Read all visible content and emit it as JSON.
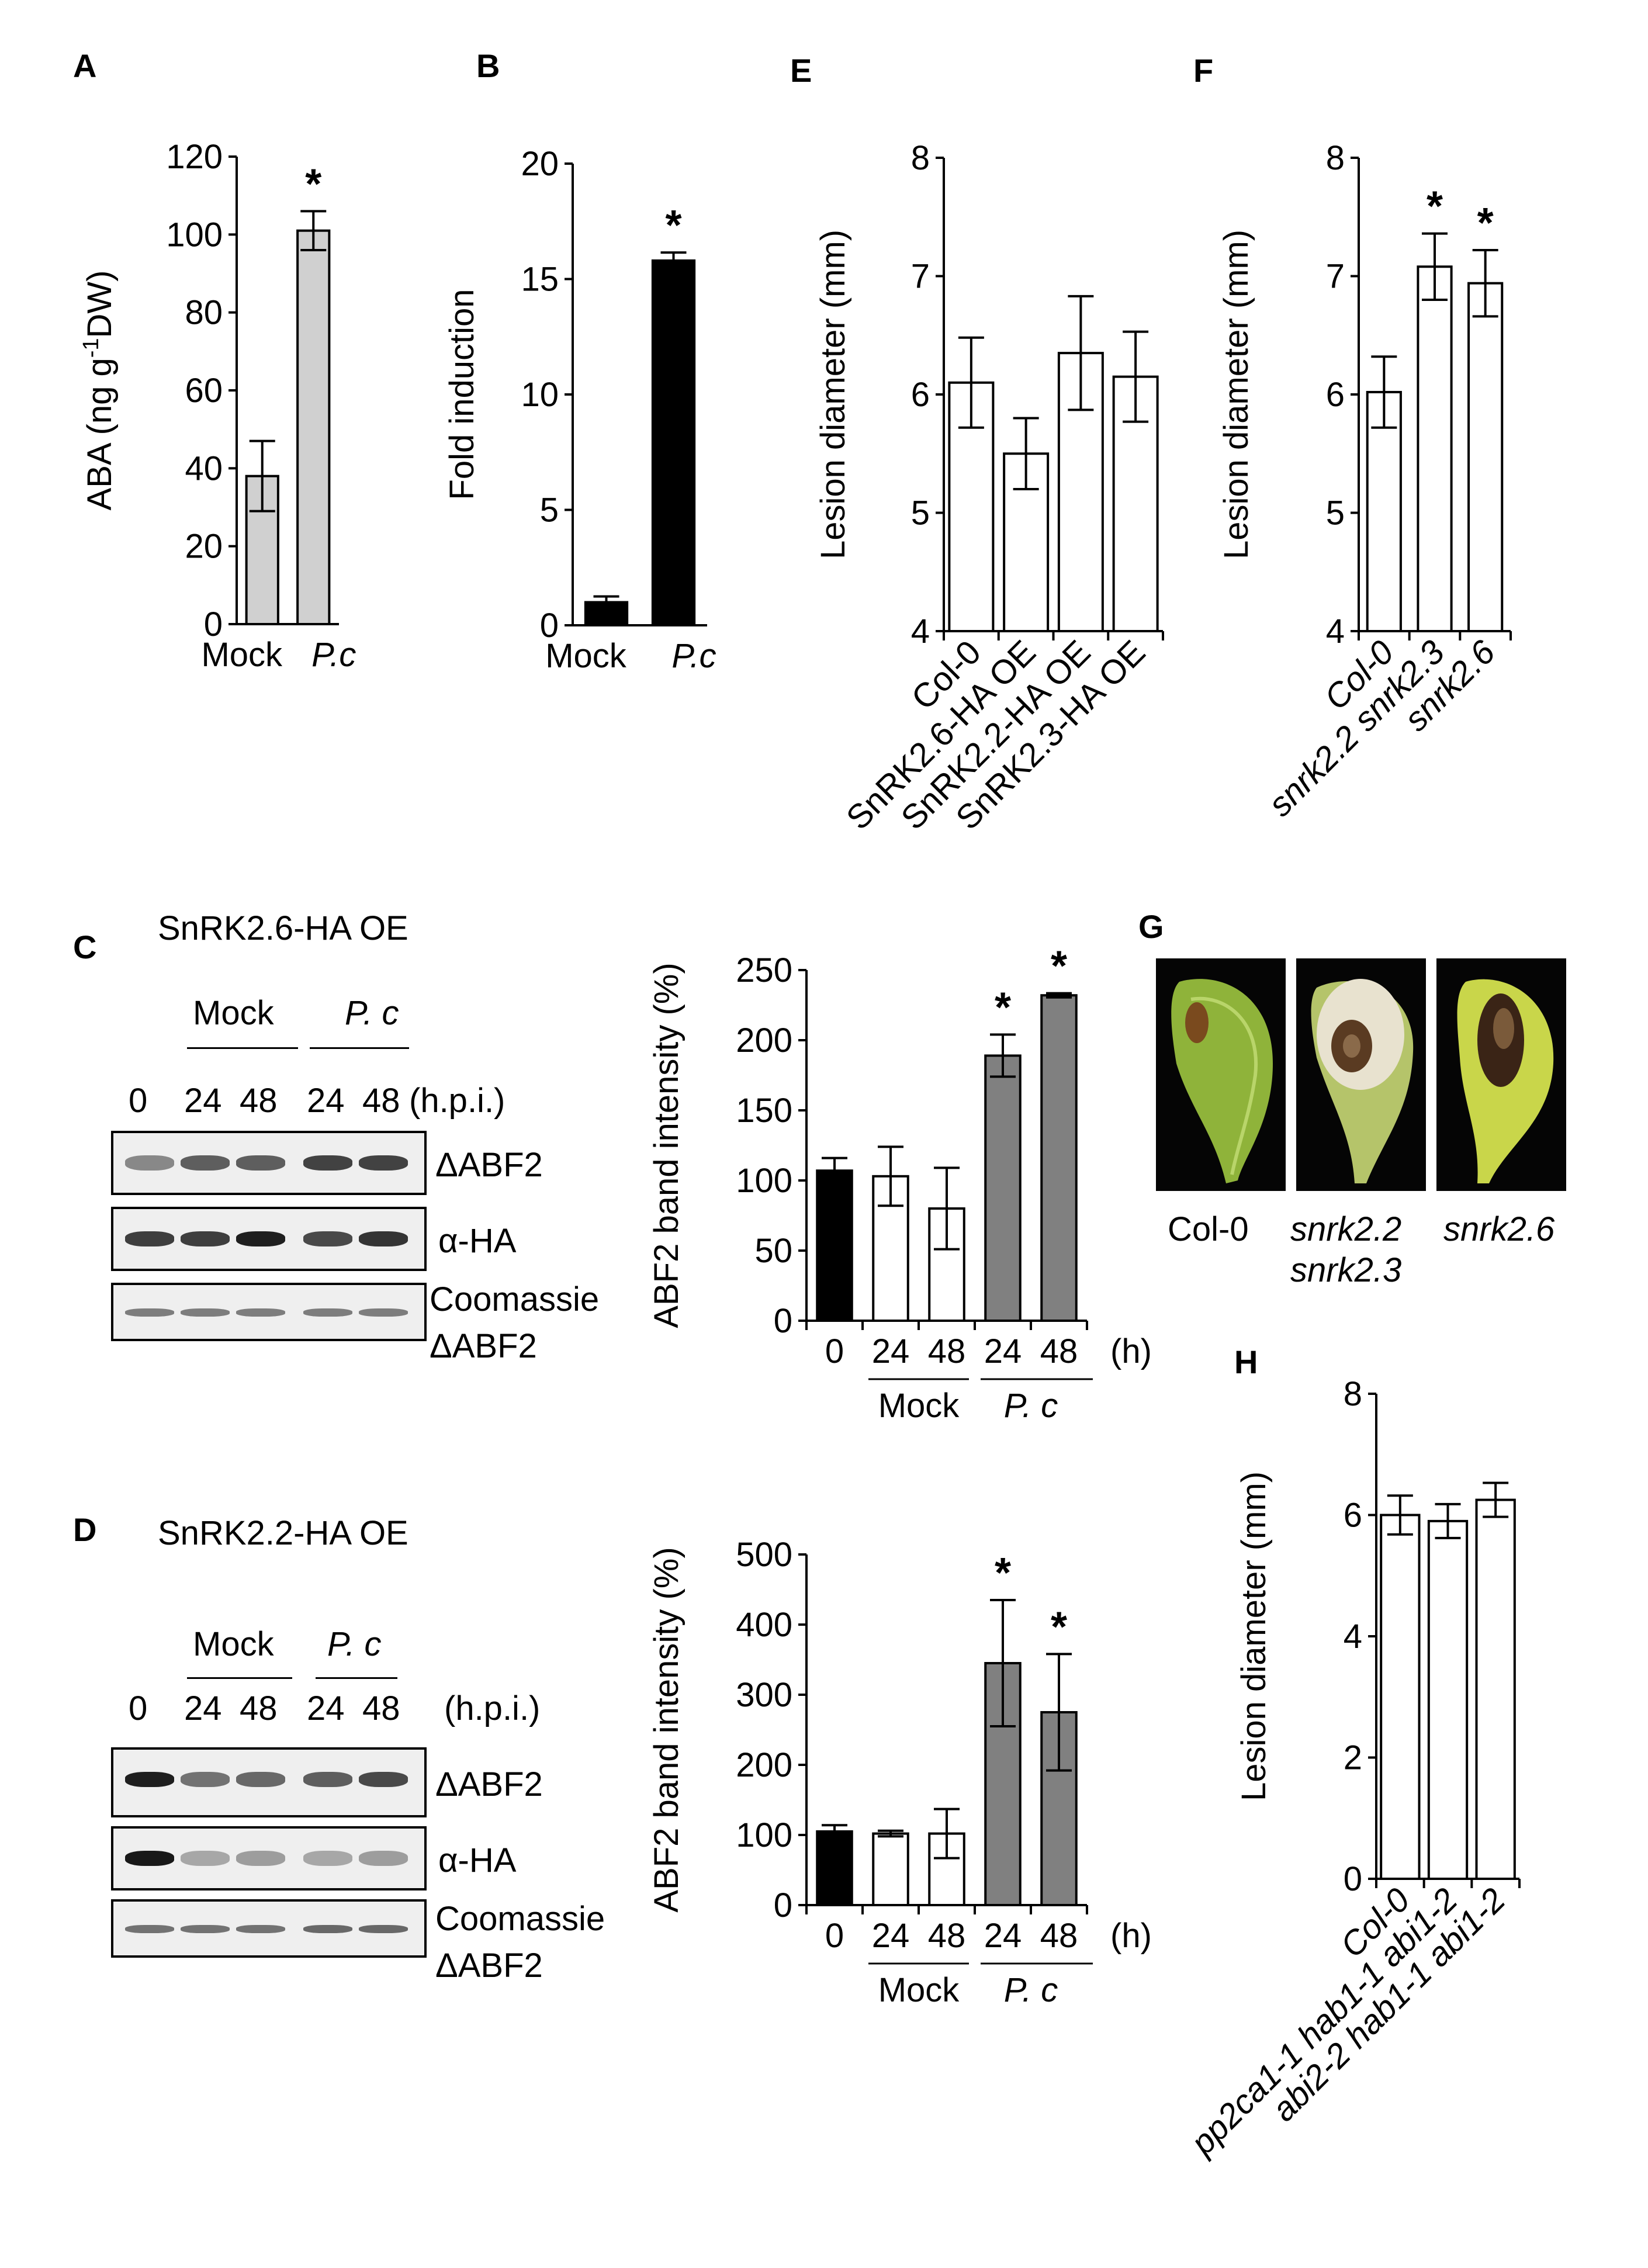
{
  "panels": {
    "A": "A",
    "B": "B",
    "C": "C",
    "D": "D",
    "E": "E",
    "F": "F",
    "G": "G",
    "H": "H"
  },
  "colors": {
    "light_gray_bar": "#d0d0d0",
    "dark_gray_bar": "#808080",
    "black_bar": "#000000",
    "white_bar": "#ffffff"
  },
  "chart_data": [
    {
      "id": "A",
      "type": "bar",
      "categories": [
        "Mock",
        "P.c"
      ],
      "values": [
        38,
        101
      ],
      "errors": [
        9,
        5
      ],
      "significant": [
        "",
        "*"
      ],
      "ylabel": "ABA (ng g-1DW)",
      "ylabel_main": "ABA (ng g",
      "ylabel_sup": "-1",
      "ylabel_tail": "DW)",
      "ylim": [
        0,
        120
      ],
      "yticks": [
        "0",
        "20",
        "40",
        "60",
        "80",
        "100",
        "120"
      ],
      "bar_color": "#d0d0d0"
    },
    {
      "id": "B",
      "type": "bar",
      "categories": [
        "Mock",
        "P.c"
      ],
      "values": [
        1.0,
        15.8
      ],
      "errors": [
        0.25,
        0.35
      ],
      "significant": [
        "",
        "*"
      ],
      "ylabel": "Fold induction",
      "ylim": [
        0,
        20
      ],
      "yticks": [
        "0",
        "5",
        "10",
        "15",
        "20"
      ],
      "bar_color": "#000000"
    },
    {
      "id": "E",
      "type": "bar",
      "categories": [
        "Col-0",
        "SnRK2.6-HA OE",
        "SnRK2.2-HA OE",
        "SnRK2.3-HA OE"
      ],
      "values": [
        6.1,
        5.5,
        6.35,
        6.15
      ],
      "errors": [
        0.38,
        0.3,
        0.48,
        0.38
      ],
      "ylabel": "Lesion diameter (mm)",
      "ylim": [
        4,
        8
      ],
      "yticks": [
        "4",
        "5",
        "6",
        "7",
        "8"
      ],
      "bar_color": "#ffffff"
    },
    {
      "id": "F",
      "type": "bar",
      "categories": [
        "Col-0",
        "snrk2.2 snrk2.3",
        "snrk2.6"
      ],
      "values": [
        6.02,
        7.08,
        6.94
      ],
      "errors": [
        0.3,
        0.28,
        0.28
      ],
      "significant": [
        "",
        "*",
        "*"
      ],
      "ylabel": "Lesion diameter (mm)",
      "ylim": [
        4,
        8
      ],
      "yticks": [
        "4",
        "5",
        "6",
        "7",
        "8"
      ],
      "bar_color": "#ffffff"
    },
    {
      "id": "C",
      "type": "bar",
      "categories": [
        "0",
        "24",
        "48",
        "24",
        "48"
      ],
      "values": [
        107,
        103,
        80,
        189,
        232
      ],
      "errors": [
        9,
        21,
        29,
        15,
        1.5
      ],
      "significant": [
        "",
        "",
        "",
        "*",
        "*"
      ],
      "bar_colors": [
        "#000000",
        "#ffffff",
        "#ffffff",
        "#808080",
        "#808080"
      ],
      "ylabel": "ABF2 band intensity (%)",
      "ylim": [
        0,
        250
      ],
      "yticks": [
        "0",
        "50",
        "100",
        "150",
        "200",
        "250"
      ],
      "x_unit": "(h)",
      "groups": [
        "Mock",
        "P. c"
      ]
    },
    {
      "id": "D",
      "type": "bar",
      "categories": [
        "0",
        "24",
        "48",
        "24",
        "48"
      ],
      "values": [
        105,
        102,
        102,
        345,
        275
      ],
      "errors": [
        9,
        4,
        35,
        90,
        83
      ],
      "significant": [
        "",
        "",
        "",
        "*",
        "*"
      ],
      "bar_colors": [
        "#000000",
        "#ffffff",
        "#ffffff",
        "#808080",
        "#808080"
      ],
      "ylabel": "ABF2 band intensity (%)",
      "ylim": [
        0,
        500
      ],
      "yticks": [
        "0",
        "100",
        "200",
        "300",
        "400",
        "500"
      ],
      "x_unit": "(h)",
      "groups": [
        "Mock",
        "P. c"
      ]
    },
    {
      "id": "H",
      "type": "bar",
      "categories": [
        "Col-0",
        "pp2ca1-1 hab1-1 abi1-2",
        "abi2-2 hab1-1 abi1-2"
      ],
      "values": [
        6.0,
        5.9,
        6.25
      ],
      "errors": [
        0.32,
        0.28,
        0.28
      ],
      "ylabel": "Lesion diameter (mm)",
      "ylim": [
        0,
        8
      ],
      "yticks": [
        "0",
        "2",
        "4",
        "6",
        "8"
      ],
      "bar_color": "#ffffff"
    }
  ],
  "blot_c": {
    "title": "SnRK2.6-HA OE",
    "group_mock": "Mock",
    "group_pc": "P. c",
    "lanes": [
      "0",
      "24",
      "48",
      "24",
      "48"
    ],
    "lane_unit": "(h.p.i.)",
    "rows": [
      "ΔABF2",
      "α-HA",
      "Coomassie"
    ],
    "row_extra": "ΔABF2",
    "intensities": {
      "abf2": [
        0.45,
        0.65,
        0.65,
        0.78,
        0.78
      ],
      "ha": [
        0.8,
        0.8,
        0.95,
        0.75,
        0.85
      ],
      "coomassie": [
        0.5,
        0.5,
        0.5,
        0.5,
        0.5
      ]
    }
  },
  "blot_d": {
    "title": "SnRK2.2-HA OE",
    "group_mock": "Mock",
    "group_pc": "P. c",
    "lanes": [
      "0",
      "24",
      "48",
      "24",
      "48"
    ],
    "lane_unit": "(h.p.i.)",
    "rows": [
      "ΔABF2",
      "α-HA",
      "Coomassie"
    ],
    "row_extra": "ΔABF2",
    "intensities": {
      "abf2": [
        0.95,
        0.55,
        0.6,
        0.65,
        0.75
      ],
      "ha": [
        0.98,
        0.3,
        0.35,
        0.3,
        0.35
      ],
      "coomassie": [
        0.55,
        0.55,
        0.55,
        0.6,
        0.6
      ]
    }
  },
  "leaves": {
    "labels": [
      "Col-0",
      "snrk2.2",
      "snrk2.6"
    ],
    "label_second_line": "snrk2.3"
  }
}
